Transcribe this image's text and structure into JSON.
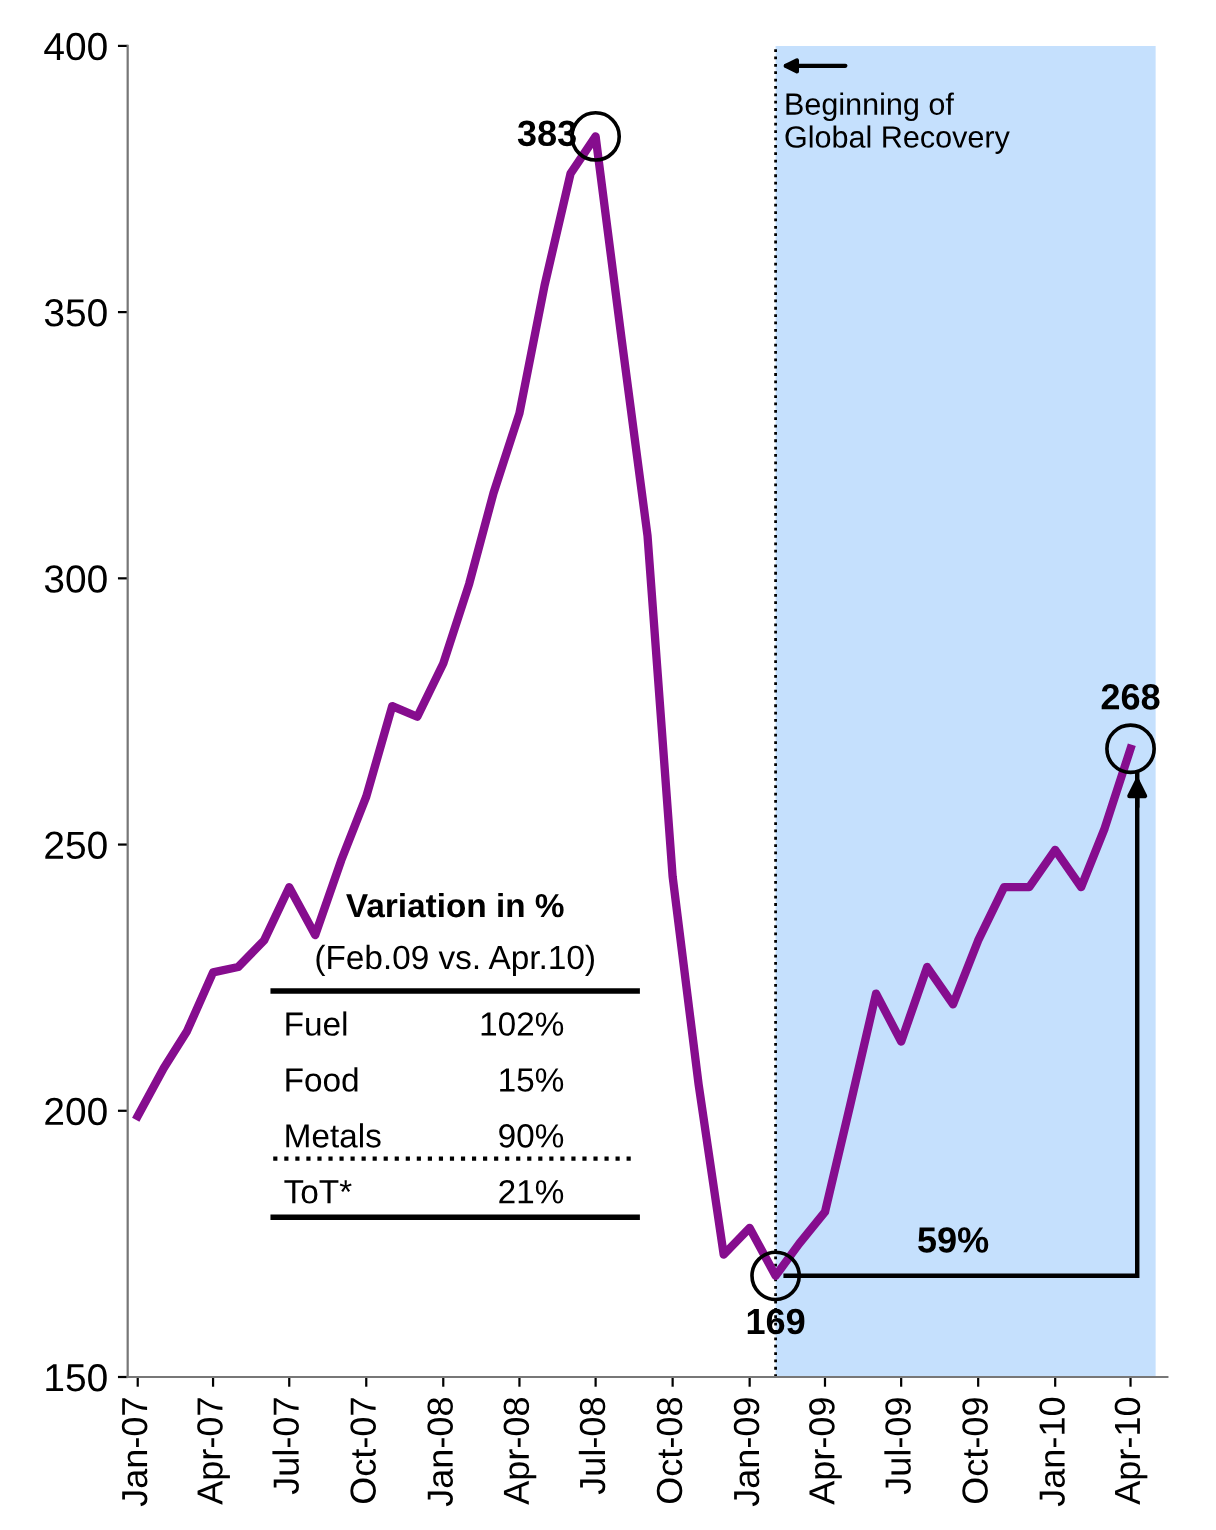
{
  "chart_data": {
    "type": "line",
    "x": [
      "2007-01",
      "2007-02",
      "2007-03",
      "2007-04",
      "2007-05",
      "2007-06",
      "2007-07",
      "2007-08",
      "2007-09",
      "2007-10",
      "2007-11",
      "2007-12",
      "2008-01",
      "2008-02",
      "2008-03",
      "2008-04",
      "2008-05",
      "2008-06",
      "2008-07",
      "2008-08",
      "2008-09",
      "2008-10",
      "2008-11",
      "2008-12",
      "2009-01",
      "2009-02",
      "2009-03",
      "2009-04",
      "2009-05",
      "2009-06",
      "2009-07",
      "2009-08",
      "2009-09",
      "2009-10",
      "2009-11",
      "2009-12",
      "2010-01",
      "2010-02",
      "2010-03",
      "2010-04"
    ],
    "series": [
      {
        "color": "#860d8e",
        "values": [
          199,
          208,
          215,
          226,
          227,
          232,
          242,
          233,
          247,
          259,
          276,
          274,
          284,
          299,
          316,
          331,
          355,
          376,
          383,
          345,
          308,
          244,
          205,
          173,
          178,
          169,
          175,
          181,
          201,
          222,
          213,
          227,
          220,
          232,
          242,
          242,
          249,
          242,
          253,
          268
        ]
      }
    ],
    "xlim": [
      "2006-12-20",
      "2010-05-15"
    ],
    "xticks": [
      {
        "value": "2007-01",
        "label": "Jan-07"
      },
      {
        "value": "2007-04",
        "label": "Apr-07"
      },
      {
        "value": "2007-07",
        "label": "Jul-07"
      },
      {
        "value": "2007-10",
        "label": "Oct-07"
      },
      {
        "value": "2008-01",
        "label": "Jan-08"
      },
      {
        "value": "2008-04",
        "label": "Apr-08"
      },
      {
        "value": "2008-07",
        "label": "Jul-08"
      },
      {
        "value": "2008-10",
        "label": "Oct-08"
      },
      {
        "value": "2009-01",
        "label": "Jan-09"
      },
      {
        "value": "2009-04",
        "label": "Apr-09"
      },
      {
        "value": "2009-07",
        "label": "Jul-09"
      },
      {
        "value": "2009-10",
        "label": "Oct-09"
      },
      {
        "value": "2010-01",
        "label": "Jan-10"
      },
      {
        "value": "2010-04",
        "label": "Apr-10"
      }
    ],
    "ylim": [
      150,
      400
    ],
    "yticks": [
      150,
      200,
      250,
      300,
      350,
      400
    ],
    "grid": false,
    "marker": "none",
    "line_style": "solid",
    "ref_lines": [
      {
        "axis": "x",
        "value": "2009-02",
        "label": "Beginning of\nGlobal Recovery",
        "line_style": "dotted",
        "color": "#000000"
      }
    ],
    "bands": [
      {
        "axis": "x",
        "from": "2009-02",
        "to": "2010-05",
        "color": "#c5e0fd"
      }
    ],
    "annotations": [
      {
        "text": "383",
        "x": "2008-07",
        "y": 383
      },
      {
        "text": "169",
        "x": "2009-02",
        "y": 169
      },
      {
        "text": "268",
        "x": "2010-04",
        "y": 268
      },
      "59%",
      "Variation in %",
      "(Feb.09 vs. Apr.10)",
      "Fuel",
      "102%",
      "Food",
      "15%",
      "Metals",
      "90%",
      "ToT*",
      "21%"
    ]
  }
}
